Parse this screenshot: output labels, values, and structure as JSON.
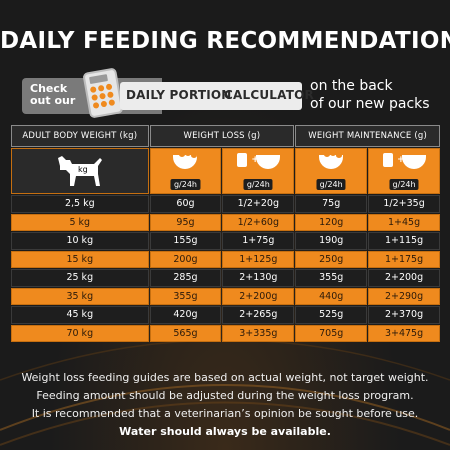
{
  "title": "DAILY FEEDING RECOMMENDATION",
  "banner": {
    "check_line1": "Check",
    "check_line2": "out our",
    "calc_part1": "DAILY PORTION",
    "calc_part2": "CALCULATOR",
    "back_line1": "on the back",
    "back_line2": "of our new packs"
  },
  "table": {
    "headers": {
      "body_weight": "ADULT BODY WEIGHT (kg)",
      "weight_loss": "WEIGHT LOSS (g)",
      "weight_maintenance": "WEIGHT MAINTENANCE (g)"
    },
    "dog_label": "kg",
    "per_day_label": "g/24h",
    "plus_sign": "+",
    "rows": [
      {
        "kg": "2,5 kg",
        "wl_dry": "60g",
        "wl_mix": "1/2+20g",
        "wm_dry": "75g",
        "wm_mix": "1/2+35g"
      },
      {
        "kg": "5 kg",
        "wl_dry": "95g",
        "wl_mix": "1/2+60g",
        "wm_dry": "120g",
        "wm_mix": "1+45g"
      },
      {
        "kg": "10 kg",
        "wl_dry": "155g",
        "wl_mix": "1+75g",
        "wm_dry": "190g",
        "wm_mix": "1+115g"
      },
      {
        "kg": "15 kg",
        "wl_dry": "200g",
        "wl_mix": "1+125g",
        "wm_dry": "250g",
        "wm_mix": "1+175g"
      },
      {
        "kg": "25 kg",
        "wl_dry": "285g",
        "wl_mix": "2+130g",
        "wm_dry": "355g",
        "wm_mix": "2+200g"
      },
      {
        "kg": "35 kg",
        "wl_dry": "355g",
        "wl_mix": "2+200g",
        "wm_dry": "440g",
        "wm_mix": "2+290g"
      },
      {
        "kg": "45 kg",
        "wl_dry": "420g",
        "wl_mix": "2+265g",
        "wm_dry": "525g",
        "wm_mix": "2+370g"
      },
      {
        "kg": "70 kg",
        "wl_dry": "565g",
        "wl_mix": "3+335g",
        "wm_dry": "705g",
        "wm_mix": "3+475g"
      }
    ]
  },
  "notes": {
    "line1": "Weight loss feeding guides are based on actual weight, not target weight.",
    "line2": "Feeding amount should be adjusted during the weight loss program.",
    "line3": "It is recommended that a veterinarian’s opinion be sought before use.",
    "line4": "Water should always be available."
  },
  "colors": {
    "accent": "#ef8a1e",
    "background": "#1b1b1b",
    "dark_row": "#1e1e1e"
  },
  "icons": [
    "calculator-icon",
    "dog-icon",
    "food-bowl-icon",
    "wet-food-can-icon"
  ]
}
